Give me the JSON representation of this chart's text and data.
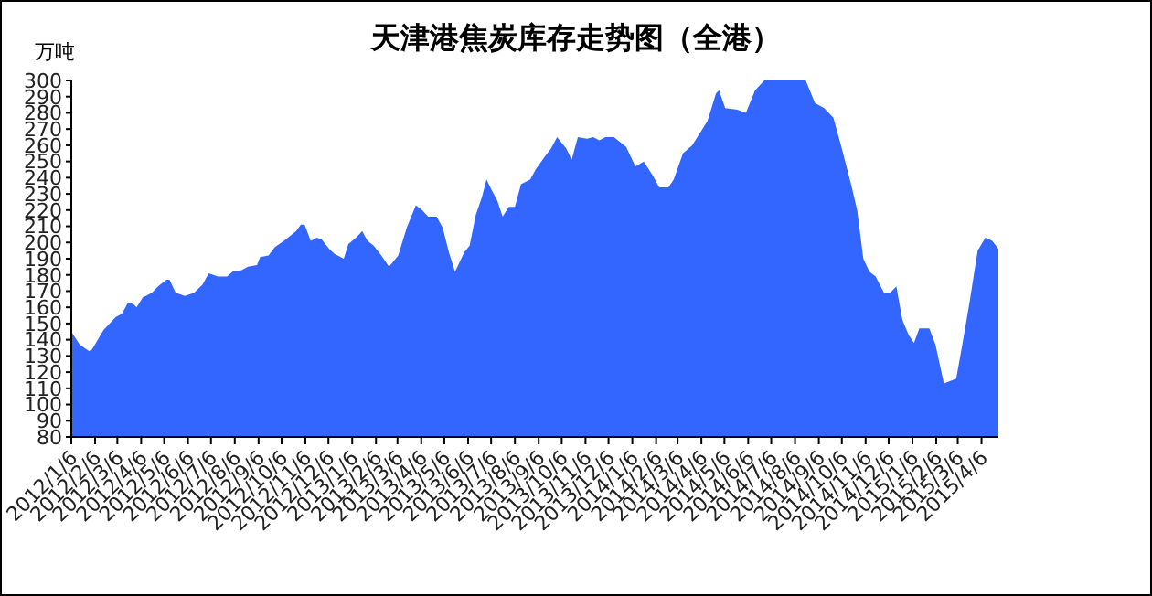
{
  "chart_data": {
    "type": "area",
    "title": "天津港焦炭库存走势图（全港）",
    "ylabel": "万吨",
    "x": [
      "2012-01-06",
      "2012-01-17",
      "2012-01-29",
      "2012-02-02",
      "2012-02-17",
      "2012-03-04",
      "2012-03-12",
      "2012-03-20",
      "2012-03-27",
      "2012-03-31",
      "2012-04-08",
      "2012-04-20",
      "2012-04-28",
      "2012-05-09",
      "2012-05-13",
      "2012-05-21",
      "2012-06-02",
      "2012-06-14",
      "2012-06-25",
      "2012-07-03",
      "2012-07-15",
      "2012-07-27",
      "2012-08-03",
      "2012-08-15",
      "2012-08-23",
      "2012-09-04",
      "2012-09-08",
      "2012-09-19",
      "2012-09-27",
      "2012-10-09",
      "2012-10-25",
      "2012-10-31",
      "2012-11-05",
      "2012-11-13",
      "2012-11-21",
      "2012-11-27",
      "2012-12-07",
      "2012-12-14",
      "2012-12-26",
      "2013-01-01",
      "2013-01-11",
      "2013-01-19",
      "2013-01-26",
      "2013-02-03",
      "2013-02-13",
      "2013-02-23",
      "2013-03-07",
      "2013-03-18",
      "2013-03-30",
      "2013-04-07",
      "2013-04-15",
      "2013-04-26",
      "2013-05-04",
      "2013-05-12",
      "2013-05-20",
      "2013-06-01",
      "2013-06-08",
      "2013-06-16",
      "2013-06-24",
      "2013-06-30",
      "2013-07-06",
      "2013-07-14",
      "2013-07-21",
      "2013-07-29",
      "2013-08-06",
      "2013-08-14",
      "2013-08-26",
      "2013-09-02",
      "2013-09-14",
      "2013-09-22",
      "2013-09-30",
      "2013-10-12",
      "2013-10-19",
      "2013-10-27",
      "2013-11-08",
      "2013-11-16",
      "2013-11-24",
      "2013-12-02",
      "2013-12-13",
      "2013-12-29",
      "2014-01-10",
      "2014-01-21",
      "2014-02-02",
      "2014-02-10",
      "2014-02-22",
      "2014-03-01",
      "2014-03-13",
      "2014-03-25",
      "2014-04-06",
      "2014-04-14",
      "2014-04-25",
      "2014-04-29",
      "2014-05-07",
      "2014-05-23",
      "2014-06-03",
      "2014-06-15",
      "2014-06-27",
      "2014-08-20",
      "2014-09-01",
      "2014-09-13",
      "2014-09-25",
      "2014-10-06",
      "2014-10-18",
      "2014-10-26",
      "2014-11-03",
      "2014-11-11",
      "2014-11-19",
      "2014-11-30",
      "2014-12-08",
      "2014-12-16",
      "2014-12-24",
      "2015-01-01",
      "2015-01-08",
      "2015-01-15",
      "2015-01-28",
      "2015-02-05",
      "2015-02-16",
      "2015-03-04",
      "2015-03-12",
      "2015-03-21",
      "2015-04-01",
      "2015-04-11",
      "2015-04-20",
      "2015-04-28"
    ],
    "series": [
      {
        "color": "#3366ff",
        "values": [
          145,
          137,
          133,
          134,
          146,
          154,
          156,
          163,
          162,
          160,
          166,
          169,
          173,
          177,
          177,
          169,
          167,
          169,
          174,
          181,
          179,
          179,
          182,
          183,
          185,
          186,
          191,
          192,
          197,
          201,
          207,
          211,
          211,
          201,
          203,
          202,
          196,
          193,
          190,
          199,
          203,
          207,
          201,
          198,
          192,
          185,
          192,
          209,
          223,
          220,
          216,
          216,
          209,
          194,
          182,
          194,
          198,
          217,
          228,
          239,
          233,
          226,
          216,
          222,
          222,
          236,
          239,
          245,
          253,
          258,
          265,
          258,
          251,
          265,
          264,
          265,
          263,
          265,
          265,
          259,
          247,
          250,
          241,
          234,
          234,
          239,
          255,
          260,
          269,
          275,
          292,
          294,
          283,
          282,
          280,
          294,
          300,
          300,
          286,
          283,
          277,
          258,
          236,
          220,
          190,
          182,
          179,
          169,
          169,
          173,
          152,
          143,
          138,
          147,
          147,
          137,
          113,
          116,
          137,
          162,
          195,
          203,
          201,
          196
        ]
      }
    ],
    "xlim": [
      "2012-01-06",
      "2015-04-28"
    ],
    "xticks": [
      {
        "value": "2012-01-06",
        "label": "2012/1/6"
      },
      {
        "value": "2012-02-06",
        "label": "2012/2/6"
      },
      {
        "value": "2012-03-06",
        "label": "2012/3/6"
      },
      {
        "value": "2012-04-06",
        "label": "2012/4/6"
      },
      {
        "value": "2012-05-06",
        "label": "2012/5/6"
      },
      {
        "value": "2012-06-06",
        "label": "2012/6/6"
      },
      {
        "value": "2012-07-06",
        "label": "2012/7/6"
      },
      {
        "value": "2012-08-06",
        "label": "2012/8/6"
      },
      {
        "value": "2012-09-06",
        "label": "2012/9/6"
      },
      {
        "value": "2012-10-06",
        "label": "2012/10/6"
      },
      {
        "value": "2012-11-06",
        "label": "2012/11/6"
      },
      {
        "value": "2012-12-06",
        "label": "2012/12/6"
      },
      {
        "value": "2013-01-06",
        "label": "2013/1/6"
      },
      {
        "value": "2013-02-06",
        "label": "2013/2/6"
      },
      {
        "value": "2013-03-06",
        "label": "2013/3/6"
      },
      {
        "value": "2013-04-06",
        "label": "2013/4/6"
      },
      {
        "value": "2013-05-06",
        "label": "2013/5/6"
      },
      {
        "value": "2013-06-06",
        "label": "2013/6/6"
      },
      {
        "value": "2013-07-06",
        "label": "2013/7/6"
      },
      {
        "value": "2013-08-06",
        "label": "2013/8/6"
      },
      {
        "value": "2013-09-06",
        "label": "2013/9/6"
      },
      {
        "value": "2013-10-06",
        "label": "2013/10/6"
      },
      {
        "value": "2013-11-06",
        "label": "2013/11/6"
      },
      {
        "value": "2013-12-06",
        "label": "2013/12/6"
      },
      {
        "value": "2014-01-06",
        "label": "2014/1/6"
      },
      {
        "value": "2014-02-06",
        "label": "2014/2/6"
      },
      {
        "value": "2014-03-06",
        "label": "2014/3/6"
      },
      {
        "value": "2014-04-06",
        "label": "2014/4/6"
      },
      {
        "value": "2014-05-06",
        "label": "2014/5/6"
      },
      {
        "value": "2014-06-06",
        "label": "2014/6/6"
      },
      {
        "value": "2014-07-06",
        "label": "2014/7/6"
      },
      {
        "value": "2014-08-06",
        "label": "2014/8/6"
      },
      {
        "value": "2014-09-06",
        "label": "2014/9/6"
      },
      {
        "value": "2014-10-06",
        "label": "2014/10/6"
      },
      {
        "value": "2014-11-06",
        "label": "2014/11/6"
      },
      {
        "value": "2014-12-06",
        "label": "2014/12/6"
      },
      {
        "value": "2015-01-06",
        "label": "2015/1/6"
      },
      {
        "value": "2015-02-06",
        "label": "2015/2/6"
      },
      {
        "value": "2015-03-06",
        "label": "2015/3/6"
      },
      {
        "value": "2015-04-06",
        "label": "2015/4/6"
      }
    ],
    "ylim": [
      80,
      300
    ],
    "yticks": [
      80,
      90,
      100,
      110,
      120,
      130,
      140,
      150,
      160,
      170,
      180,
      190,
      200,
      210,
      220,
      230,
      240,
      250,
      260,
      270,
      280,
      290,
      300
    ]
  }
}
